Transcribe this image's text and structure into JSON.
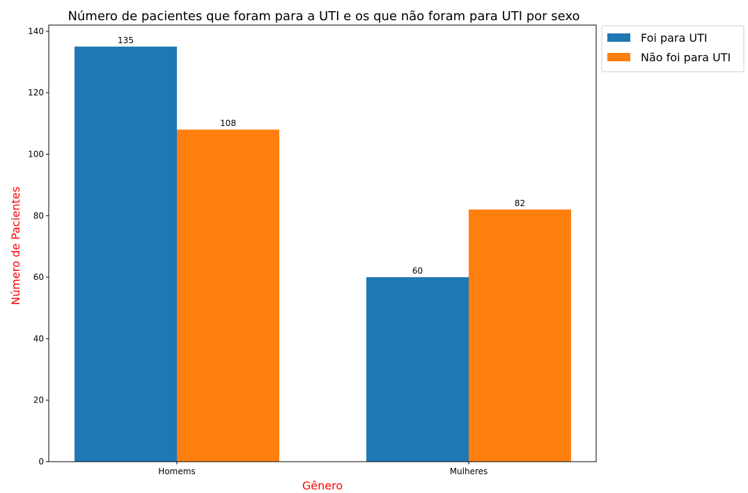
{
  "chart_data": {
    "type": "bar",
    "title": "Número de pacientes que foram para a UTI e os que não foram para UTI por sexo",
    "xlabel": "Gênero",
    "ylabel": "Número de Pacientes",
    "categories": [
      "Homems",
      "Mulheres"
    ],
    "series": [
      {
        "name": "Foi para UTI",
        "values": [
          135,
          60
        ],
        "color": "#1f77b4"
      },
      {
        "name": "Não foi para UTI",
        "values": [
          108,
          82
        ],
        "color": "#ff7f0e"
      }
    ],
    "ylim": [
      0,
      142
    ],
    "yticks": [
      0,
      20,
      40,
      60,
      80,
      100,
      120,
      140
    ],
    "axis_label_color": "#ff0000",
    "legend_position": "outside upper right",
    "grid": false
  }
}
